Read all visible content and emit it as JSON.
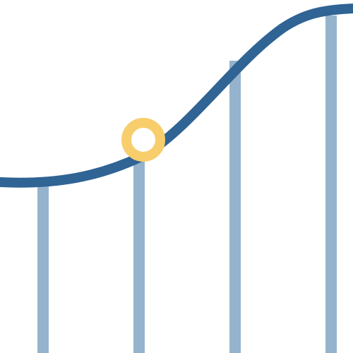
{
  "icon": {
    "name": "growth-curve-icon",
    "bar_count": 4,
    "highlighted_bar_index": 1
  },
  "colors": {
    "background": "#ffffff",
    "curve": "#2f6494",
    "bars": "#96b3cd",
    "marker_ring": "#f7ce6b",
    "marker_fill": "#ffffff"
  }
}
